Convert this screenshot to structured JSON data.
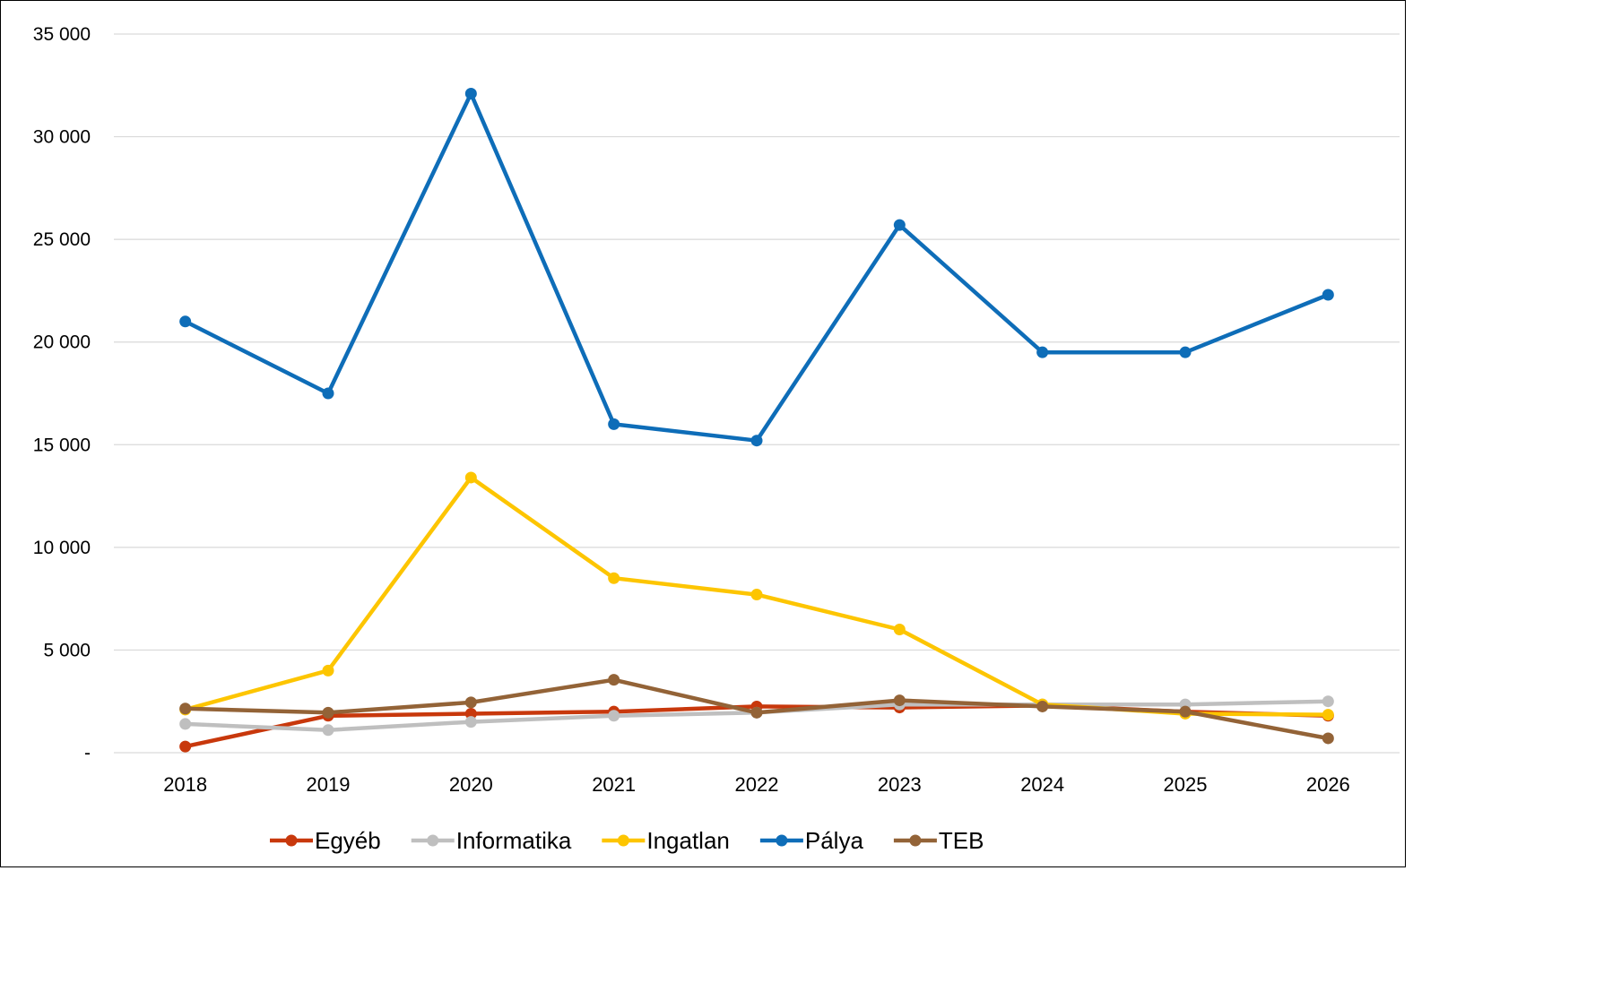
{
  "chart_data": {
    "type": "line",
    "title": "",
    "xlabel": "",
    "ylabel": "",
    "categories": [
      "2018",
      "2019",
      "2020",
      "2021",
      "2022",
      "2023",
      "2024",
      "2025",
      "2026"
    ],
    "ylim": [
      0,
      35000
    ],
    "yticks": [
      0,
      5000,
      10000,
      15000,
      20000,
      25000,
      30000,
      35000
    ],
    "ytick_labels": [
      "-",
      "5 000",
      "10 000",
      "15 000",
      "20 000",
      "25 000",
      "30 000",
      "35 000"
    ],
    "grid": true,
    "legend_position": "bottom",
    "series": [
      {
        "name": "Egyéb",
        "color": "#c8380c",
        "values": [
          300,
          1800,
          1900,
          2000,
          2250,
          2200,
          2300,
          2000,
          1800
        ]
      },
      {
        "name": "Informatika",
        "color": "#bfbfbf",
        "values": [
          1400,
          1100,
          1500,
          1800,
          1950,
          2350,
          2350,
          2350,
          2500
        ]
      },
      {
        "name": "Ingatlan",
        "color": "#fdc500",
        "values": [
          2100,
          4000,
          13400,
          8500,
          7700,
          6000,
          2350,
          1900,
          1850
        ]
      },
      {
        "name": "Pálya",
        "color": "#0e6db8",
        "values": [
          21000,
          17500,
          32100,
          16000,
          15200,
          25700,
          19500,
          19500,
          22300
        ]
      },
      {
        "name": "TEB",
        "color": "#936337",
        "values": [
          2150,
          1950,
          2450,
          3550,
          1950,
          2550,
          2250,
          2000,
          700
        ]
      }
    ]
  }
}
